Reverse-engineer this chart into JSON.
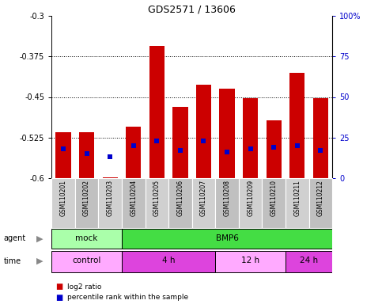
{
  "title": "GDS2571 / 13606",
  "samples": [
    "GSM110201",
    "GSM110202",
    "GSM110203",
    "GSM110204",
    "GSM110205",
    "GSM110206",
    "GSM110207",
    "GSM110208",
    "GSM110209",
    "GSM110210",
    "GSM110211",
    "GSM110212"
  ],
  "log2_ratio": [
    -0.515,
    -0.515,
    -0.598,
    -0.505,
    -0.355,
    -0.468,
    -0.428,
    -0.435,
    -0.452,
    -0.493,
    -0.405,
    -0.452
  ],
  "percentile_rank": [
    18,
    15,
    13,
    20,
    23,
    17,
    23,
    16,
    18,
    19,
    20,
    17
  ],
  "ylim_left": [
    -0.6,
    -0.3
  ],
  "ylim_right": [
    0,
    100
  ],
  "yticks_left": [
    -0.6,
    -0.525,
    -0.45,
    -0.375,
    -0.3
  ],
  "yticks_right": [
    0,
    25,
    50,
    75,
    100
  ],
  "ytick_labels_left": [
    "-0.6",
    "-0.525",
    "-0.45",
    "-0.375",
    "-0.3"
  ],
  "ytick_labels_right": [
    "0",
    "25",
    "50",
    "75",
    "100%"
  ],
  "grid_yticks": [
    -0.525,
    -0.45,
    -0.375
  ],
  "bar_color": "#cc0000",
  "dot_color": "#0000cc",
  "bar_width": 0.65,
  "agent_labels": [
    {
      "label": "mock",
      "xstart": 0,
      "xend": 3,
      "color": "#aaffaa"
    },
    {
      "label": "BMP6",
      "xstart": 3,
      "xend": 12,
      "color": "#44dd44"
    }
  ],
  "time_labels": [
    {
      "label": "control",
      "xstart": 0,
      "xend": 3,
      "color": "#ffaaff"
    },
    {
      "label": "4 h",
      "xstart": 3,
      "xend": 7,
      "color": "#dd44dd"
    },
    {
      "label": "12 h",
      "xstart": 7,
      "xend": 10,
      "color": "#ffaaff"
    },
    {
      "label": "24 h",
      "xstart": 10,
      "xend": 12,
      "color": "#dd44dd"
    }
  ],
  "legend_items": [
    {
      "label": "log2 ratio",
      "color": "#cc0000"
    },
    {
      "label": "percentile rank within the sample",
      "color": "#0000cc"
    }
  ],
  "tick_label_color_left": "#cc0000",
  "tick_label_color_right": "#0000cc",
  "background_color": "#ffffff",
  "plot_bg_color": "#ffffff",
  "xticklabel_bg": "#d0d0d0"
}
